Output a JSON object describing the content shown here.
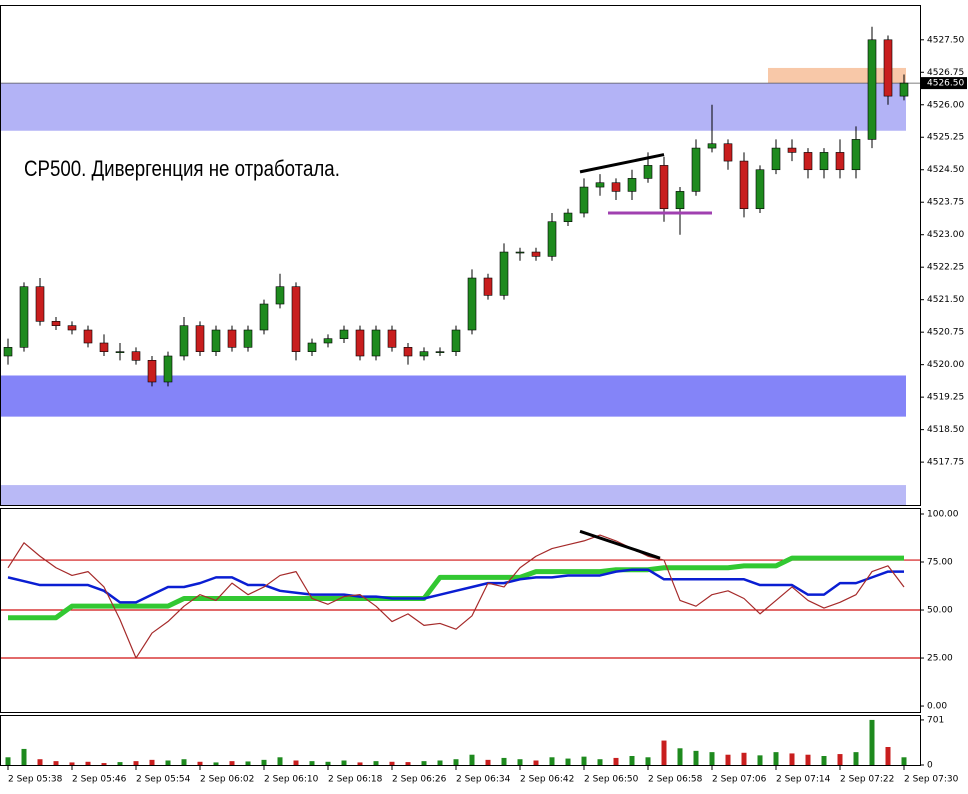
{
  "chart_data": [
    {
      "type": "candlestick",
      "annotation": "СР500. Дивергенция не отработала.",
      "x": [
        0,
        2,
        4,
        6,
        8,
        10,
        12,
        14,
        16,
        18,
        20,
        22,
        24,
        26,
        28,
        30,
        32,
        34,
        36,
        38,
        40,
        42,
        44,
        46,
        48,
        50,
        52,
        54,
        56,
        58,
        60,
        62,
        64,
        66,
        68,
        70,
        72,
        74,
        76,
        78,
        80,
        82,
        84,
        86,
        88,
        90,
        92,
        94,
        96,
        98,
        100,
        102,
        104,
        106,
        108,
        110,
        112
      ],
      "open": [
        4520.2,
        4520.4,
        4521.8,
        4521.0,
        4520.9,
        4520.8,
        4520.5,
        4520.3,
        4520.3,
        4520.1,
        4519.6,
        4520.2,
        4520.9,
        4520.3,
        4520.8,
        4520.4,
        4520.8,
        4521.4,
        4521.8,
        4520.3,
        4520.5,
        4520.6,
        4520.8,
        4520.2,
        4520.8,
        4520.4,
        4520.2,
        4520.3,
        4520.3,
        4520.8,
        4522.0,
        4521.6,
        4522.6,
        4522.6,
        4522.5,
        4523.3,
        4523.5,
        4524.1,
        4524.2,
        4524.0,
        4524.3,
        4524.6,
        4523.6,
        4524.0,
        4525.0,
        4525.1,
        4524.7,
        4523.6,
        4524.5,
        4525.0,
        4524.9,
        4524.5,
        4524.9,
        4524.5,
        4525.2,
        4527.5,
        4526.2
      ],
      "high": [
        4520.6,
        4521.9,
        4522.0,
        4521.1,
        4521.0,
        4520.9,
        4520.7,
        4520.5,
        4520.4,
        4520.2,
        4520.3,
        4521.1,
        4521.0,
        4520.9,
        4520.9,
        4520.9,
        4521.5,
        4522.1,
        4521.9,
        4520.6,
        4520.7,
        4520.9,
        4520.9,
        4520.9,
        4520.9,
        4520.5,
        4520.4,
        4520.4,
        4520.9,
        4522.2,
        4522.1,
        4522.8,
        4522.7,
        4522.7,
        4523.5,
        4523.6,
        4524.3,
        4524.4,
        4524.3,
        4524.5,
        4524.9,
        4524.8,
        4524.1,
        4525.2,
        4526.0,
        4525.2,
        4524.9,
        4524.6,
        4525.2,
        4525.2,
        4525.0,
        4525.0,
        4525.2,
        4525.5,
        4527.8,
        4527.6,
        4526.7
      ],
      "low": [
        4520.0,
        4520.3,
        4520.9,
        4520.8,
        4520.7,
        4520.4,
        4520.2,
        4520.1,
        4520.0,
        4519.5,
        4519.5,
        4520.1,
        4520.2,
        4520.2,
        4520.3,
        4520.3,
        4520.7,
        4521.3,
        4520.1,
        4520.2,
        4520.4,
        4520.5,
        4520.1,
        4520.1,
        4520.3,
        4520.0,
        4520.1,
        4520.2,
        4520.2,
        4520.7,
        4521.5,
        4521.5,
        4522.4,
        4522.4,
        4522.4,
        4523.2,
        4523.4,
        4523.9,
        4523.8,
        4523.8,
        4524.2,
        4523.3,
        4523.0,
        4523.9,
        4524.9,
        4524.5,
        4523.4,
        4523.5,
        4524.4,
        4524.7,
        4524.3,
        4524.3,
        4524.3,
        4524.3,
        4525.0,
        4526.0,
        4526.1
      ],
      "close": [
        4520.4,
        4521.8,
        4521.0,
        4520.9,
        4520.8,
        4520.5,
        4520.3,
        4520.3,
        4520.1,
        4519.6,
        4520.2,
        4520.9,
        4520.3,
        4520.8,
        4520.4,
        4520.8,
        4521.4,
        4521.8,
        4520.3,
        4520.5,
        4520.6,
        4520.8,
        4520.2,
        4520.8,
        4520.4,
        4520.2,
        4520.3,
        4520.3,
        4520.8,
        4522.0,
        4521.6,
        4522.6,
        4522.6,
        4522.5,
        4523.3,
        4523.5,
        4524.1,
        4524.2,
        4524.0,
        4524.3,
        4524.6,
        4523.6,
        4524.0,
        4525.0,
        4525.1,
        4524.7,
        4523.6,
        4524.5,
        4525.0,
        4524.9,
        4524.5,
        4524.9,
        4524.5,
        4525.2,
        4527.5,
        4526.2,
        4526.5
      ],
      "up_color": "#1e8a1e",
      "down_color": "#c81e1e",
      "xlim": [
        -1,
        114
      ],
      "ylim": [
        4516.76,
        4528.28
      ],
      "yticks": [
        {
          "value": 4527.5,
          "label": "4527.50"
        },
        {
          "value": 4526.75,
          "label": "4526.75"
        },
        {
          "value": 4526.0,
          "label": "4526.00"
        },
        {
          "value": 4525.25,
          "label": "4525.25"
        },
        {
          "value": 4524.5,
          "label": "4524.50"
        },
        {
          "value": 4523.75,
          "label": "4523.75"
        },
        {
          "value": 4523.0,
          "label": "4523.00"
        },
        {
          "value": 4522.25,
          "label": "4522.25"
        },
        {
          "value": 4521.5,
          "label": "4521.50"
        },
        {
          "value": 4520.75,
          "label": "4520.75"
        },
        {
          "value": 4520.0,
          "label": "4520.00"
        },
        {
          "value": 4519.25,
          "label": "4519.25"
        },
        {
          "value": 4518.5,
          "label": "4518.50"
        },
        {
          "value": 4517.75,
          "label": "4517.75"
        }
      ],
      "last_price": {
        "value": 4526.5,
        "label": "4526.50"
      },
      "zones": [
        {
          "x": [
            -1,
            112.25
          ],
          "y": [
            4525.4,
            4526.5
          ],
          "color": "#b3b3f6"
        },
        {
          "x": [
            -1,
            112.25
          ],
          "y": [
            4518.8,
            4519.75
          ],
          "color": "#8484f8"
        },
        {
          "x": [
            -1,
            112.25
          ],
          "y": [
            4516.76,
            4517.22
          ],
          "color": "#b9b9f6"
        },
        {
          "x": [
            95,
            112.25
          ],
          "y": [
            4526.5,
            4526.85
          ],
          "color": "#f8c8a8"
        }
      ],
      "trend_lines": [
        {
          "x": [
            71.5,
            82
          ],
          "y": [
            4524.45,
            4524.85
          ],
          "color": "#000000"
        },
        {
          "x": [
            75,
            88
          ],
          "y": [
            4523.5,
            4523.5
          ],
          "color": "#a040b0"
        }
      ]
    },
    {
      "type": "line",
      "series": [
        {
          "color": "#32c832",
          "width": 5,
          "values": [
            46,
            46,
            46,
            46,
            52,
            52,
            52,
            52,
            52,
            52,
            52,
            56,
            56,
            56,
            56,
            56,
            56,
            56,
            56,
            56,
            56,
            56,
            56,
            56,
            56,
            56,
            56,
            67,
            67,
            67,
            67,
            67,
            67,
            70,
            70,
            70,
            70,
            70,
            71,
            71,
            71,
            72,
            72,
            72,
            72,
            72,
            73,
            73,
            73,
            77,
            77,
            77,
            77,
            77,
            77,
            77,
            77
          ]
        },
        {
          "color": "#0a1ed2",
          "width": 2.5,
          "values": [
            67,
            65,
            63,
            63,
            63,
            63,
            60,
            54,
            54,
            58,
            62,
            62,
            64,
            67,
            67,
            63,
            63,
            60,
            59,
            58,
            58,
            58,
            57,
            57,
            56,
            56,
            56,
            58,
            60,
            62,
            64,
            64,
            66,
            67,
            67,
            68,
            68,
            68,
            70,
            71,
            71,
            66,
            66,
            66,
            66,
            66,
            66,
            63,
            63,
            63,
            58,
            58,
            64,
            64,
            67,
            70,
            70
          ]
        },
        {
          "color": "#a52a2a",
          "width": 1.2,
          "values": [
            72,
            85,
            78,
            72,
            68,
            70,
            62,
            45,
            25,
            38,
            44,
            52,
            58,
            55,
            64,
            58,
            62,
            68,
            70,
            56,
            53,
            57,
            58,
            52,
            44,
            48,
            42,
            43,
            40,
            47,
            64,
            62,
            72,
            78,
            82,
            84,
            86,
            89,
            86,
            82,
            78,
            76,
            55,
            52,
            58,
            60,
            56,
            48,
            55,
            62,
            55,
            51,
            54,
            58,
            70,
            73,
            62
          ]
        }
      ],
      "levels": [
        76,
        50,
        25
      ],
      "level_color": "#d01010",
      "ylim": [
        -3.1,
        102.6
      ],
      "yticks": [
        {
          "value": 100,
          "label": "100.00"
        },
        {
          "value": 75,
          "label": "75.00"
        },
        {
          "value": 50,
          "label": "50.00"
        },
        {
          "value": 25,
          "label": "25.00"
        },
        {
          "value": 0,
          "label": "0.00"
        }
      ],
      "trend_lines": [
        {
          "x": [
            71.5,
            81.5
          ],
          "y": [
            91,
            77
          ],
          "color": "#000000"
        }
      ]
    },
    {
      "type": "bar",
      "values": [
        120,
        250,
        90,
        60,
        40,
        50,
        30,
        45,
        60,
        80,
        70,
        90,
        50,
        40,
        60,
        55,
        80,
        120,
        70,
        60,
        50,
        70,
        40,
        60,
        50,
        45,
        60,
        70,
        90,
        160,
        80,
        110,
        90,
        70,
        120,
        100,
        130,
        90,
        110,
        140,
        120,
        380,
        260,
        220,
        200,
        160,
        190,
        150,
        200,
        180,
        160,
        140,
        170,
        200,
        701,
        280,
        120
      ],
      "ylim": [
        0,
        762
      ],
      "yticks": [
        701,
        0
      ],
      "xticks": [
        {
          "value": 0,
          "label": "2 Sep 05:38"
        },
        {
          "value": 8,
          "label": "2 Sep 05:46"
        },
        {
          "value": 16,
          "label": "2 Sep 05:54"
        },
        {
          "value": 24,
          "label": "2 Sep 06:02"
        },
        {
          "value": 32,
          "label": "2 Sep 06:10"
        },
        {
          "value": 40,
          "label": "2 Sep 06:18"
        },
        {
          "value": 48,
          "label": "2 Sep 06:26"
        },
        {
          "value": 56,
          "label": "2 Sep 06:34"
        },
        {
          "value": 64,
          "label": "2 Sep 06:42"
        },
        {
          "value": 72,
          "label": "2 Sep 06:50"
        },
        {
          "value": 80,
          "label": "2 Sep 06:58"
        },
        {
          "value": 88,
          "label": "2 Sep 07:06"
        },
        {
          "value": 96,
          "label": "2 Sep 07:14"
        },
        {
          "value": 104,
          "label": "2 Sep 07:22"
        },
        {
          "value": 112,
          "label": "2 Sep 07:30"
        }
      ]
    }
  ]
}
